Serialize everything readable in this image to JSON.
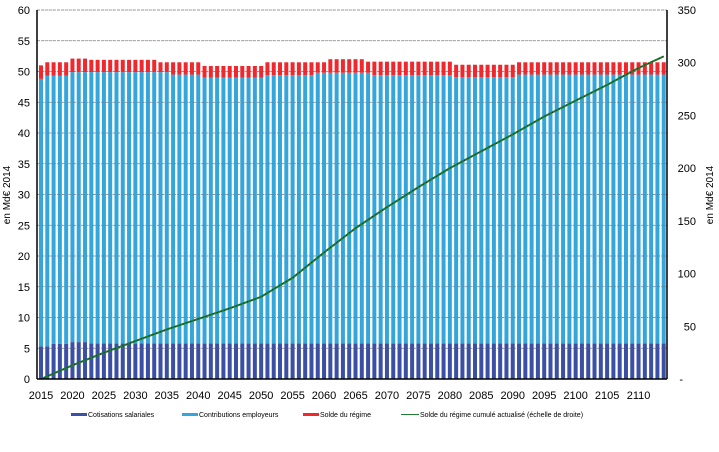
{
  "chart_data": {
    "type": "bar",
    "stacked": true,
    "title": "",
    "ylabel_left": "en Md€ 2014",
    "ylabel_right": "en Md€ 2014",
    "ylim_left": [
      0,
      60
    ],
    "ylim_right": [
      0,
      350
    ],
    "yticks_left": [
      "0",
      "5",
      "10",
      "15",
      "20",
      "25",
      "30",
      "35",
      "40",
      "45",
      "50",
      "55",
      "60"
    ],
    "yticks_right": [
      "-",
      "50",
      "100",
      "150",
      "200",
      "250",
      "300",
      "350"
    ],
    "xticks": [
      "2015",
      "2020",
      "2025",
      "2030",
      "2035",
      "2040",
      "2045",
      "2050",
      "2055",
      "2060",
      "2065",
      "2070",
      "2075",
      "2080",
      "2085",
      "2090",
      "2095",
      "2100",
      "2105",
      "2110"
    ],
    "grid": true,
    "legend_position": "bottom",
    "year_start": 2015,
    "year_end": 2114,
    "series": [
      {
        "name": "Cotisations salariales",
        "color": "#3b4fa5",
        "axis": "left",
        "values": [
          5.3,
          5.3,
          5.7,
          5.7,
          5.7,
          6.0,
          6.0,
          6.0,
          5.8,
          5.8,
          5.8,
          5.8,
          5.8,
          5.8,
          5.8,
          5.8,
          5.8,
          5.8,
          5.8,
          5.8,
          5.8,
          5.8,
          5.8,
          5.8,
          5.8,
          5.8,
          5.8,
          5.8,
          5.8,
          5.8,
          5.8,
          5.8,
          5.8,
          5.8,
          5.8,
          5.8,
          5.8,
          5.8,
          5.8,
          5.8,
          5.8,
          5.8,
          5.8,
          5.8,
          5.8,
          5.8,
          5.8,
          5.8,
          5.8,
          5.8,
          5.8,
          5.8,
          5.8,
          5.8,
          5.8,
          5.8,
          5.8,
          5.8,
          5.8,
          5.8,
          5.8,
          5.8,
          5.8,
          5.8,
          5.8,
          5.8,
          5.8,
          5.8,
          5.8,
          5.8,
          5.8,
          5.8,
          5.8,
          5.8,
          5.8,
          5.8,
          5.8,
          5.8,
          5.8,
          5.8,
          5.8,
          5.8,
          5.8,
          5.8,
          5.8,
          5.8,
          5.8,
          5.8,
          5.8,
          5.8,
          5.8,
          5.8,
          5.8,
          5.8,
          5.8,
          5.8,
          5.8,
          5.8,
          5.8,
          5.8
        ]
      },
      {
        "name": "Contributions employeurs",
        "color": "#35a6dc",
        "axis": "left",
        "values": [
          43.5,
          44.0,
          43.6,
          43.6,
          43.6,
          43.9,
          43.9,
          43.9,
          44.1,
          44.1,
          44.1,
          44.1,
          44.1,
          44.1,
          44.1,
          44.1,
          44.1,
          44.1,
          44.1,
          44.1,
          44.1,
          43.7,
          43.7,
          43.7,
          43.7,
          43.7,
          43.2,
          43.2,
          43.2,
          43.2,
          43.2,
          43.2,
          43.2,
          43.2,
          43.2,
          43.2,
          43.6,
          43.6,
          43.6,
          43.6,
          43.6,
          43.6,
          43.6,
          43.6,
          44.0,
          44.0,
          44.0,
          44.0,
          44.0,
          44.0,
          44.0,
          44.0,
          44.0,
          43.6,
          43.6,
          43.6,
          43.6,
          43.6,
          43.6,
          43.6,
          43.6,
          43.6,
          43.6,
          43.6,
          43.6,
          43.6,
          43.3,
          43.3,
          43.3,
          43.3,
          43.3,
          43.3,
          43.3,
          43.3,
          43.3,
          43.3,
          43.7,
          43.7,
          43.7,
          43.7,
          43.7,
          43.7,
          43.7,
          43.7,
          43.7,
          43.7,
          43.7,
          43.7,
          43.7,
          43.7,
          43.7,
          43.7,
          43.7,
          43.7,
          43.7,
          43.7,
          43.7,
          43.7,
          43.7,
          43.7
        ]
      },
      {
        "name": "Solde du régime",
        "color": "#f0282d",
        "axis": "left",
        "values": [
          2.2,
          2.2,
          2.2,
          2.2,
          2.2,
          2.2,
          2.2,
          2.2,
          2.0,
          2.0,
          2.0,
          2.0,
          2.0,
          2.0,
          2.0,
          2.0,
          2.0,
          2.0,
          2.0,
          1.6,
          1.6,
          2.0,
          2.0,
          2.0,
          2.0,
          2.0,
          1.9,
          1.9,
          1.9,
          1.9,
          1.9,
          1.9,
          1.9,
          1.9,
          1.9,
          1.9,
          2.1,
          2.1,
          2.1,
          2.1,
          2.1,
          2.1,
          2.1,
          2.1,
          1.7,
          1.7,
          2.2,
          2.2,
          2.2,
          2.2,
          2.2,
          2.2,
          1.8,
          2.2,
          2.2,
          2.2,
          2.2,
          2.2,
          2.2,
          2.2,
          2.2,
          2.2,
          2.2,
          2.2,
          2.2,
          2.2,
          2.0,
          2.0,
          2.0,
          2.0,
          2.0,
          2.0,
          2.0,
          2.0,
          2.0,
          2.0,
          2.0,
          2.0,
          2.0,
          2.0,
          2.0,
          2.0,
          2.0,
          2.0,
          2.0,
          2.0,
          2.0,
          2.0,
          2.0,
          2.0,
          2.0,
          2.0,
          2.0,
          2.0,
          2.0,
          2.0,
          2.0,
          2.0,
          2.0,
          2.0
        ]
      },
      {
        "name": "Solde du régime cumulé actualisé (échelle de droite)",
        "color": "#1e7a2e",
        "axis": "right",
        "type": "line",
        "x": [
          2015,
          2020,
          2025,
          2030,
          2035,
          2040,
          2045,
          2050,
          2055,
          2060,
          2065,
          2070,
          2075,
          2080,
          2085,
          2090,
          2095,
          2100,
          2105,
          2110,
          2114
        ],
        "values": [
          0,
          13,
          25,
          36,
          47,
          57,
          67,
          78,
          96,
          120,
          143,
          163,
          182,
          200,
          216,
          232,
          249,
          264,
          279,
          295,
          306
        ]
      }
    ]
  }
}
